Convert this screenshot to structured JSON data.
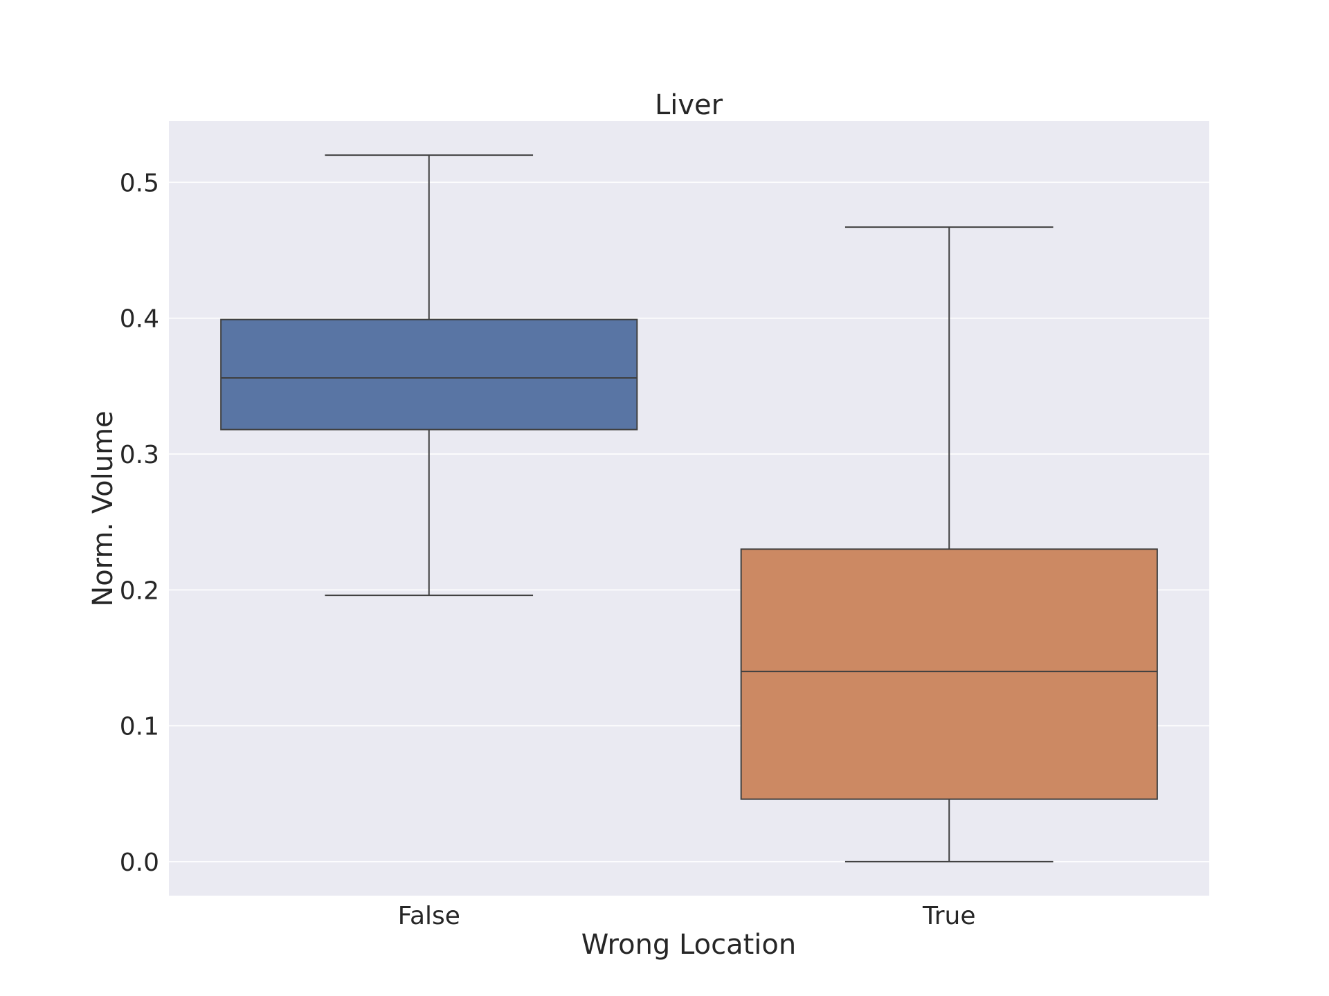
{
  "chart_data": {
    "type": "box",
    "title": "Liver",
    "xlabel": "Wrong Location",
    "ylabel": "Norm. Volume",
    "categories": [
      "False",
      "True"
    ],
    "ylim": [
      -0.025,
      0.545
    ],
    "yticks": [
      0.0,
      0.1,
      0.2,
      0.3,
      0.4,
      0.5
    ],
    "ytick_labels": [
      "0.0",
      "0.1",
      "0.2",
      "0.3",
      "0.4",
      "0.5"
    ],
    "grid": true,
    "boxes": [
      {
        "category": "False",
        "whisker_low": 0.196,
        "q1": 0.318,
        "median": 0.356,
        "q3": 0.399,
        "whisker_high": 0.52,
        "color": "#5975a4"
      },
      {
        "category": "True",
        "whisker_low": 0.0,
        "q1": 0.046,
        "median": 0.14,
        "q3": 0.23,
        "whisker_high": 0.467,
        "color": "#cc8963"
      }
    ],
    "colors": {
      "plot_background": "#eaeaf2",
      "grid": "#ffffff",
      "box_edge": "#3f3f3f"
    }
  }
}
